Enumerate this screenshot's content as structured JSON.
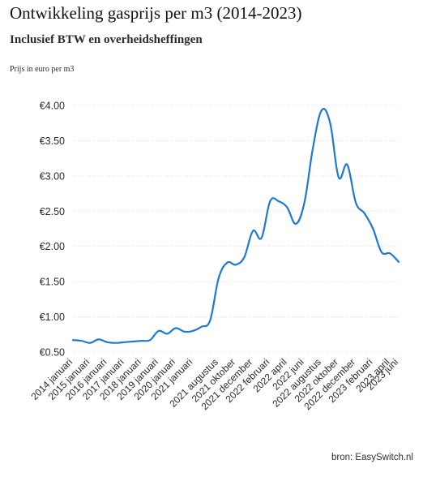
{
  "chart_data": {
    "type": "line",
    "title": "Ontwikkeling gasprijs per m3 (2014-2023)",
    "subtitle": "Inclusief BTW en overheidsheffingen",
    "ylabel": "Prijs in euro per m3",
    "source": "bron: EasySwitch.nl",
    "ylim": [
      0.5,
      4.0
    ],
    "y_ticks": [
      {
        "value": 0.5,
        "label": "€0.50"
      },
      {
        "value": 1.0,
        "label": "€1.00"
      },
      {
        "value": 1.5,
        "label": "€1.50"
      },
      {
        "value": 2.0,
        "label": "€2.00"
      },
      {
        "value": 2.5,
        "label": "€2.50"
      },
      {
        "value": 3.0,
        "label": "€3.00"
      },
      {
        "value": 3.5,
        "label": "€3.50"
      },
      {
        "value": 4.0,
        "label": "€4.00"
      }
    ],
    "grid": true,
    "line_color": "#1f78d1",
    "x_ticks": [
      "2014 januari",
      "2015 januari",
      "2016 januari",
      "2017 januari",
      "2018 januari",
      "2019 januari",
      "2020 januari",
      "2021 januari",
      "2021 augustus",
      "2021 oktober",
      "2021 december",
      "2022 februari",
      "2022 april",
      "2022 juni",
      "2022 augustus",
      "2022 oktober",
      "2022 december",
      "2023 februari",
      "2023 april",
      "2023 juni"
    ],
    "points": [
      {
        "x": "2014 januari",
        "y": 0.67
      },
      {
        "x": "2014 juli",
        "y": 0.66
      },
      {
        "x": "2015 januari",
        "y": 0.63
      },
      {
        "x": "2015 juli",
        "y": 0.68
      },
      {
        "x": "2016 januari",
        "y": 0.64
      },
      {
        "x": "2016 juli",
        "y": 0.63
      },
      {
        "x": "2017 januari",
        "y": 0.64
      },
      {
        "x": "2017 juli",
        "y": 0.65
      },
      {
        "x": "2018 januari",
        "y": 0.66
      },
      {
        "x": "2018 juli",
        "y": 0.67
      },
      {
        "x": "2019 januari",
        "y": 0.8
      },
      {
        "x": "2019 juli",
        "y": 0.76
      },
      {
        "x": "2020 januari",
        "y": 0.84
      },
      {
        "x": "2020 juli",
        "y": 0.79
      },
      {
        "x": "2021 januari",
        "y": 0.8
      },
      {
        "x": "2021 april",
        "y": 0.86
      },
      {
        "x": "2021 juni",
        "y": 0.95
      },
      {
        "x": "2021 augustus",
        "y": 1.55
      },
      {
        "x": "2021 september",
        "y": 1.77
      },
      {
        "x": "2021 oktober",
        "y": 1.74
      },
      {
        "x": "2021 november",
        "y": 1.85
      },
      {
        "x": "2021 december",
        "y": 2.22
      },
      {
        "x": "2022 januari",
        "y": 2.12
      },
      {
        "x": "2022 februari",
        "y": 2.64
      },
      {
        "x": "2022 maart",
        "y": 2.64
      },
      {
        "x": "2022 april",
        "y": 2.55
      },
      {
        "x": "2022 mei",
        "y": 2.32
      },
      {
        "x": "2022 juni",
        "y": 2.62
      },
      {
        "x": "2022 juli",
        "y": 3.4
      },
      {
        "x": "2022 augustus",
        "y": 3.93
      },
      {
        "x": "2022 september",
        "y": 3.75
      },
      {
        "x": "2022 oktober",
        "y": 2.98
      },
      {
        "x": "2022 november",
        "y": 3.16
      },
      {
        "x": "2022 december",
        "y": 2.62
      },
      {
        "x": "2023 januari",
        "y": 2.47
      },
      {
        "x": "2023 februari",
        "y": 2.25
      },
      {
        "x": "2023 maart",
        "y": 1.92
      },
      {
        "x": "2023 april",
        "y": 1.9
      },
      {
        "x": "2023 mei",
        "y": 1.78
      }
    ]
  }
}
